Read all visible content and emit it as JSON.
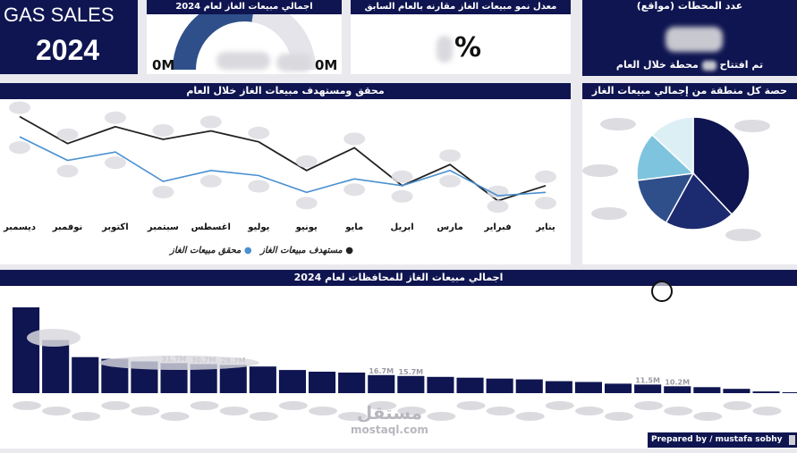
{
  "title_card": {
    "line1": "GAS SALES",
    "line2": "2024"
  },
  "kpi_total": {
    "title": "اجمالي مبيعات الغاز لعام 2024",
    "min_label": "0M",
    "max_label": "0M",
    "fill": 0.55
  },
  "kpi_growth": {
    "title": "معدل نمو مبيعات الغاز مقارنه بالعام السابق",
    "value": "%"
  },
  "kpi_stations": {
    "title": "عدد المحطات (مواقع)",
    "caption_a": "تم افتتاح",
    "caption_b": "محطة خلال العام"
  },
  "line_panel": {
    "title": "محقق ومستهدف مبيعات الغاز خلال العام",
    "legend_target": "مستهدف مبيعات الغاز",
    "legend_actual": "محقق مبيعات الغاز"
  },
  "pie_panel": {
    "title": "حصة كل منطقة من إجمالي مبيعات الغاز"
  },
  "bar_panel": {
    "title": "اجمالي مبيعات الغاز للمحافظات لعام 2024",
    "bar_labels": [
      "31.7M",
      "30.7M",
      "28.7M",
      "16.7M",
      "15.7M",
      "11.5M",
      "10.2M"
    ]
  },
  "footer": {
    "prepared": "Prepared by / mustafa sobhy",
    "watermark_ar": "مستقل",
    "watermark_en": "mostaql.com"
  },
  "colors": {
    "navy": "#0f1550",
    "target_line": "#222222",
    "actual_line": "#4a90d0",
    "pie": [
      "#0f1550",
      "#1c2a70",
      "#2f4f8a",
      "#7fc4de",
      "#dceff5"
    ]
  },
  "chart_data": [
    {
      "type": "line",
      "categories": [
        "يناير",
        "فبراير",
        "مارس",
        "ابريل",
        "مايو",
        "يونيو",
        "يوليو",
        "اغسطس",
        "سبتمبر",
        "اكتوبر",
        "نوفمبر",
        "ديسمبر"
      ],
      "series": [
        {
          "name": "مستهدف مبيعات الغاز",
          "values": [
            30,
            12,
            55,
            30,
            75,
            48,
            82,
            95,
            85,
            100,
            80,
            112
          ]
        },
        {
          "name": "محقق مبيعات الغاز",
          "values": [
            22,
            18,
            48,
            30,
            38,
            22,
            42,
            48,
            35,
            70,
            60,
            88
          ]
        }
      ],
      "ylim": [
        0,
        120
      ],
      "legend": "bottom"
    },
    {
      "type": "pie",
      "values": [
        38,
        20,
        15,
        14,
        13
      ]
    },
    {
      "type": "bar",
      "values": [
        100,
        62,
        42,
        40,
        37,
        35,
        34,
        33,
        31,
        27,
        25,
        24,
        21,
        20,
        19,
        18,
        17,
        16,
        14,
        13,
        11,
        10,
        8,
        7,
        5,
        2,
        1
      ]
    }
  ]
}
